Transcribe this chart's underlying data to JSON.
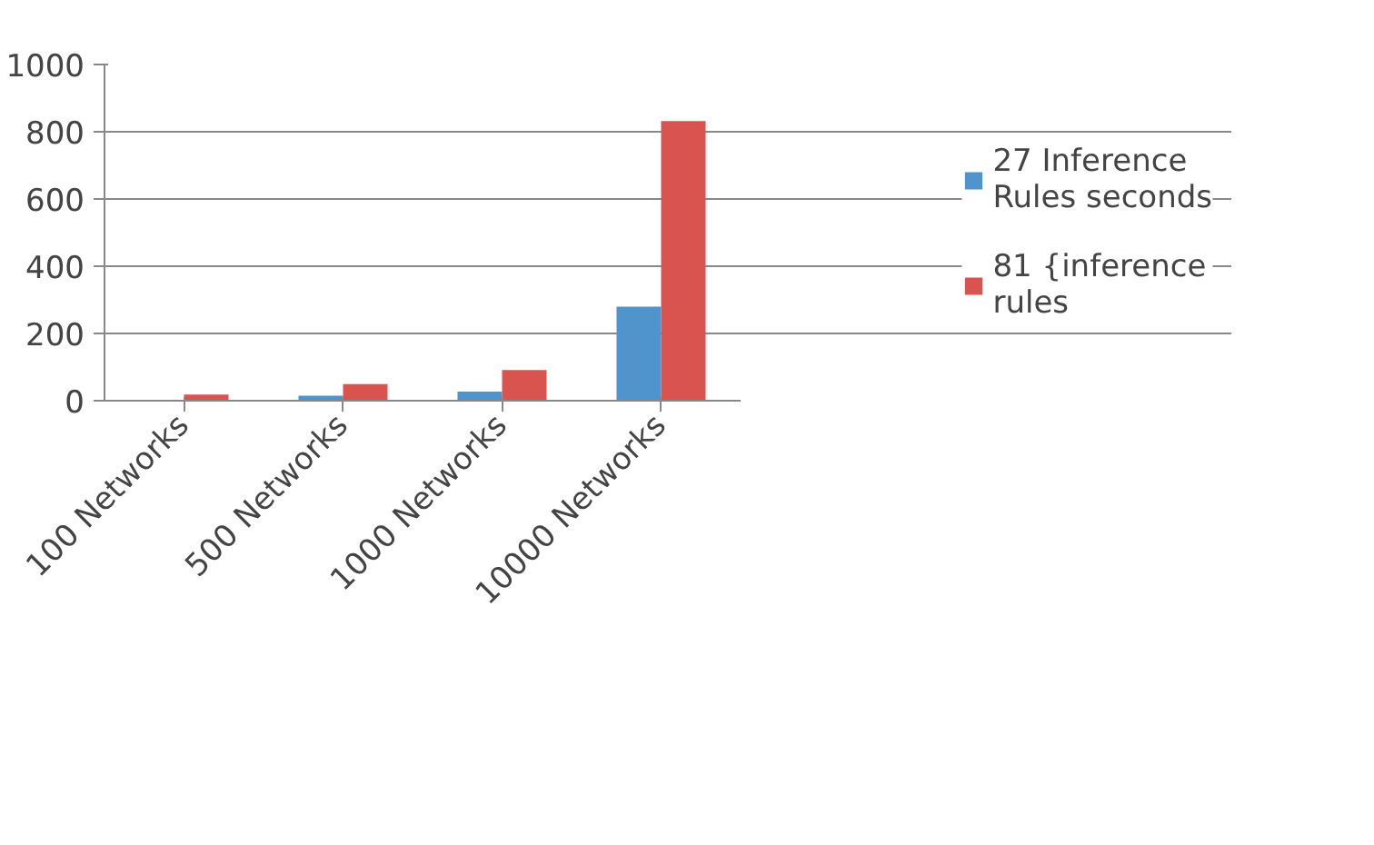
{
  "chart_data": {
    "type": "bar",
    "categories": [
      "100 Networks",
      "500 Networks",
      "1000 Networks",
      "10000 Networks"
    ],
    "series": [
      {
        "name": "27 Inference Rules seconds",
        "color": "#4f94cd",
        "values": [
          1,
          15,
          27,
          280
        ]
      },
      {
        "name": "81 {inference rules",
        "color": "#d9534f",
        "values": [
          18,
          49,
          91,
          832
        ]
      }
    ],
    "ylim": [
      0,
      1000
    ],
    "yticks": [
      0,
      200,
      400,
      600,
      800,
      1000
    ],
    "grid": "y",
    "legend": "right"
  }
}
